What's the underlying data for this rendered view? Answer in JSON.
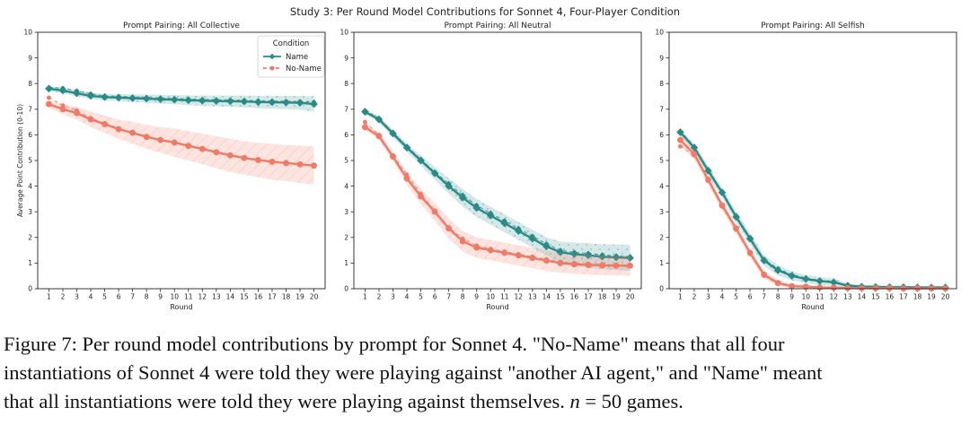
{
  "colors": {
    "name": "#2a8a87",
    "noname": "#ef7b67",
    "axis": "#222222"
  },
  "chart_data": {
    "type": "line",
    "suptitle": "Study 3: Per Round Model Contributions for Sonnet 4, Four-Player Condition",
    "xlabel": "Round",
    "ylabel": "Average Point Contribution (0-10)",
    "xticks": [
      1,
      2,
      3,
      4,
      5,
      6,
      7,
      8,
      9,
      10,
      11,
      12,
      13,
      14,
      15,
      16,
      17,
      18,
      19,
      20
    ],
    "yticks": [
      0,
      1,
      2,
      3,
      4,
      5,
      6,
      7,
      8,
      9,
      10
    ],
    "ylim": [
      0,
      10
    ],
    "legend": {
      "title": "Condition",
      "placement": "top-right of first panel",
      "entries": [
        "Name",
        "No-Name"
      ]
    },
    "panels": [
      {
        "title": "Prompt Pairing: All Collective",
        "series": [
          {
            "name": "Name",
            "values": [
              7.8,
              7.73,
              7.62,
              7.52,
              7.47,
              7.45,
              7.43,
              7.41,
              7.39,
              7.37,
              7.35,
              7.33,
              7.32,
              7.31,
              7.3,
              7.28,
              7.27,
              7.26,
              7.25,
              7.2
            ],
            "ci_low": [
              7.7,
              7.62,
              7.5,
              7.4,
              7.34,
              7.31,
              7.28,
              7.25,
              7.22,
              7.19,
              7.16,
              7.13,
              7.11,
              7.09,
              7.07,
              7.04,
              7.02,
              7.0,
              6.98,
              6.9
            ],
            "ci_high": [
              7.9,
              7.84,
              7.74,
              7.64,
              7.6,
              7.59,
              7.58,
              7.57,
              7.56,
              7.55,
              7.54,
              7.53,
              7.53,
              7.53,
              7.53,
              7.52,
              7.52,
              7.52,
              7.52,
              7.5
            ],
            "raw": [
              7.85,
              7.82,
              7.72,
              7.6,
              7.52,
              7.5,
              7.48,
              7.46,
              7.44,
              7.42,
              7.4,
              7.38,
              7.37,
              7.36,
              7.35,
              7.33,
              7.32,
              7.31,
              7.3,
              7.28
            ]
          },
          {
            "name": "No-Name",
            "values": [
              7.2,
              7.0,
              6.85,
              6.6,
              6.42,
              6.22,
              6.08,
              5.92,
              5.8,
              5.7,
              5.57,
              5.45,
              5.32,
              5.2,
              5.1,
              5.02,
              4.95,
              4.9,
              4.85,
              4.8
            ],
            "ci_low": [
              7.05,
              6.8,
              6.6,
              6.3,
              6.08,
              5.85,
              5.65,
              5.45,
              5.3,
              5.15,
              5.0,
              4.85,
              4.7,
              4.55,
              4.45,
              4.35,
              4.25,
              4.2,
              4.12,
              4.05
            ],
            "ci_high": [
              7.35,
              7.2,
              7.1,
              6.9,
              6.76,
              6.59,
              6.51,
              6.39,
              6.3,
              6.25,
              6.14,
              6.05,
              5.94,
              5.85,
              5.75,
              5.69,
              5.65,
              5.6,
              5.58,
              5.55
            ],
            "raw": [
              7.45,
              7.15,
              6.95,
              6.65,
              6.45,
              6.25,
              6.1,
              5.95,
              5.82,
              5.72,
              5.6,
              5.48,
              5.35,
              5.22,
              5.12,
              5.04,
              4.97,
              4.92,
              4.87,
              4.8
            ]
          }
        ]
      },
      {
        "title": "Prompt Pairing: All Neutral",
        "series": [
          {
            "name": "Name",
            "values": [
              6.9,
              6.6,
              6.05,
              5.5,
              5.0,
              4.5,
              4.0,
              3.55,
              3.15,
              2.85,
              2.55,
              2.25,
              1.95,
              1.65,
              1.42,
              1.35,
              1.3,
              1.25,
              1.22,
              1.2
            ],
            "ci_low": [
              6.8,
              6.48,
              5.9,
              5.33,
              4.8,
              4.25,
              3.7,
              3.2,
              2.8,
              2.5,
              2.2,
              1.9,
              1.6,
              1.3,
              1.0,
              0.9,
              0.82,
              0.76,
              0.72,
              0.7
            ],
            "ci_high": [
              7.0,
              6.72,
              6.2,
              5.67,
              5.2,
              4.75,
              4.3,
              3.9,
              3.5,
              3.2,
              2.9,
              2.6,
              2.3,
              2.0,
              1.84,
              1.8,
              1.78,
              1.74,
              1.72,
              1.7
            ],
            "raw": [
              6.95,
              6.65,
              6.1,
              5.55,
              5.05,
              4.55,
              4.1,
              3.65,
              3.25,
              2.95,
              2.65,
              2.35,
              2.05,
              1.75,
              1.5,
              1.42,
              1.38,
              1.32,
              1.28,
              1.25
            ]
          },
          {
            "name": "No-Name",
            "values": [
              6.3,
              5.95,
              5.15,
              4.3,
              3.6,
              3.0,
              2.35,
              1.85,
              1.6,
              1.5,
              1.4,
              1.3,
              1.2,
              1.1,
              1.0,
              0.95,
              0.93,
              0.91,
              0.9,
              0.9
            ],
            "ci_low": [
              6.2,
              5.8,
              4.95,
              4.05,
              3.3,
              2.65,
              1.95,
              1.45,
              1.2,
              1.1,
              1.0,
              0.9,
              0.8,
              0.7,
              0.62,
              0.58,
              0.55,
              0.53,
              0.52,
              0.5
            ],
            "ci_high": [
              6.4,
              6.1,
              5.35,
              4.55,
              3.9,
              3.35,
              2.75,
              2.25,
              2.0,
              1.9,
              1.8,
              1.7,
              1.6,
              1.5,
              1.38,
              1.32,
              1.31,
              1.29,
              1.28,
              1.3
            ],
            "raw": [
              6.5,
              6.0,
              5.2,
              4.45,
              3.7,
              3.05,
              2.4,
              1.95,
              1.68,
              1.55,
              1.45,
              1.35,
              1.25,
              1.15,
              1.05,
              1.0,
              0.97,
              0.95,
              0.93,
              0.92
            ]
          }
        ]
      },
      {
        "title": "Prompt Pairing: All Selfish",
        "series": [
          {
            "name": "Name",
            "values": [
              6.1,
              5.5,
              4.6,
              3.75,
              2.8,
              1.95,
              1.1,
              0.72,
              0.5,
              0.38,
              0.3,
              0.25,
              0.12,
              0.08,
              0.07,
              0.06,
              0.06,
              0.05,
              0.05,
              0.05
            ],
            "ci_low": [
              5.98,
              5.35,
              4.42,
              3.55,
              2.58,
              1.72,
              0.88,
              0.52,
              0.32,
              0.22,
              0.15,
              0.1,
              0.04,
              0.01,
              0.01,
              0.0,
              0.0,
              0.0,
              0.0,
              0.0
            ],
            "ci_high": [
              6.22,
              5.65,
              4.78,
              3.95,
              3.02,
              2.18,
              1.32,
              0.92,
              0.68,
              0.54,
              0.45,
              0.4,
              0.2,
              0.15,
              0.13,
              0.12,
              0.12,
              0.1,
              0.1,
              0.1
            ],
            "raw": [
              6.15,
              5.55,
              4.65,
              3.8,
              2.85,
              2.0,
              1.15,
              0.78,
              0.55,
              0.42,
              0.33,
              0.28,
              0.14,
              0.1,
              0.08,
              0.07,
              0.07,
              0.06,
              0.06,
              0.06
            ]
          },
          {
            "name": "No-Name",
            "values": [
              5.8,
              5.25,
              4.25,
              3.25,
              2.35,
              1.4,
              0.55,
              0.22,
              0.1,
              0.08,
              0.05,
              0.04,
              0.03,
              0.02,
              0.02,
              0.02,
              0.01,
              0.01,
              0.01,
              0.01
            ],
            "ci_low": [
              5.6,
              5.05,
              4.05,
              3.05,
              2.15,
              1.22,
              0.4,
              0.1,
              0.02,
              0.0,
              0.0,
              0.0,
              0.0,
              0.0,
              0.0,
              0.0,
              0.0,
              0.0,
              0.0,
              0.0
            ],
            "ci_high": [
              6.0,
              5.45,
              4.45,
              3.45,
              2.55,
              1.58,
              0.7,
              0.34,
              0.18,
              0.16,
              0.1,
              0.08,
              0.06,
              0.04,
              0.04,
              0.04,
              0.02,
              0.02,
              0.02,
              0.02
            ],
            "raw": [
              5.55,
              5.2,
              4.2,
              3.2,
              2.3,
              1.35,
              0.5,
              0.18,
              0.08,
              0.06,
              0.04,
              0.03,
              0.02,
              0.02,
              0.01,
              0.01,
              0.01,
              0.01,
              0.01,
              0.01
            ]
          }
        ]
      }
    ]
  },
  "caption": {
    "line1": "Figure 7: Per round model contributions by prompt for Sonnet 4. \"No-Name\" means that all four",
    "line2": "instantiations of Sonnet 4 were told they were playing against \"another AI agent,\" and \"Name\" meant",
    "line3_before": "that all instantiations were told they were playing against themselves. ",
    "line3_var": "n",
    "line3_after": " = 50 games."
  }
}
